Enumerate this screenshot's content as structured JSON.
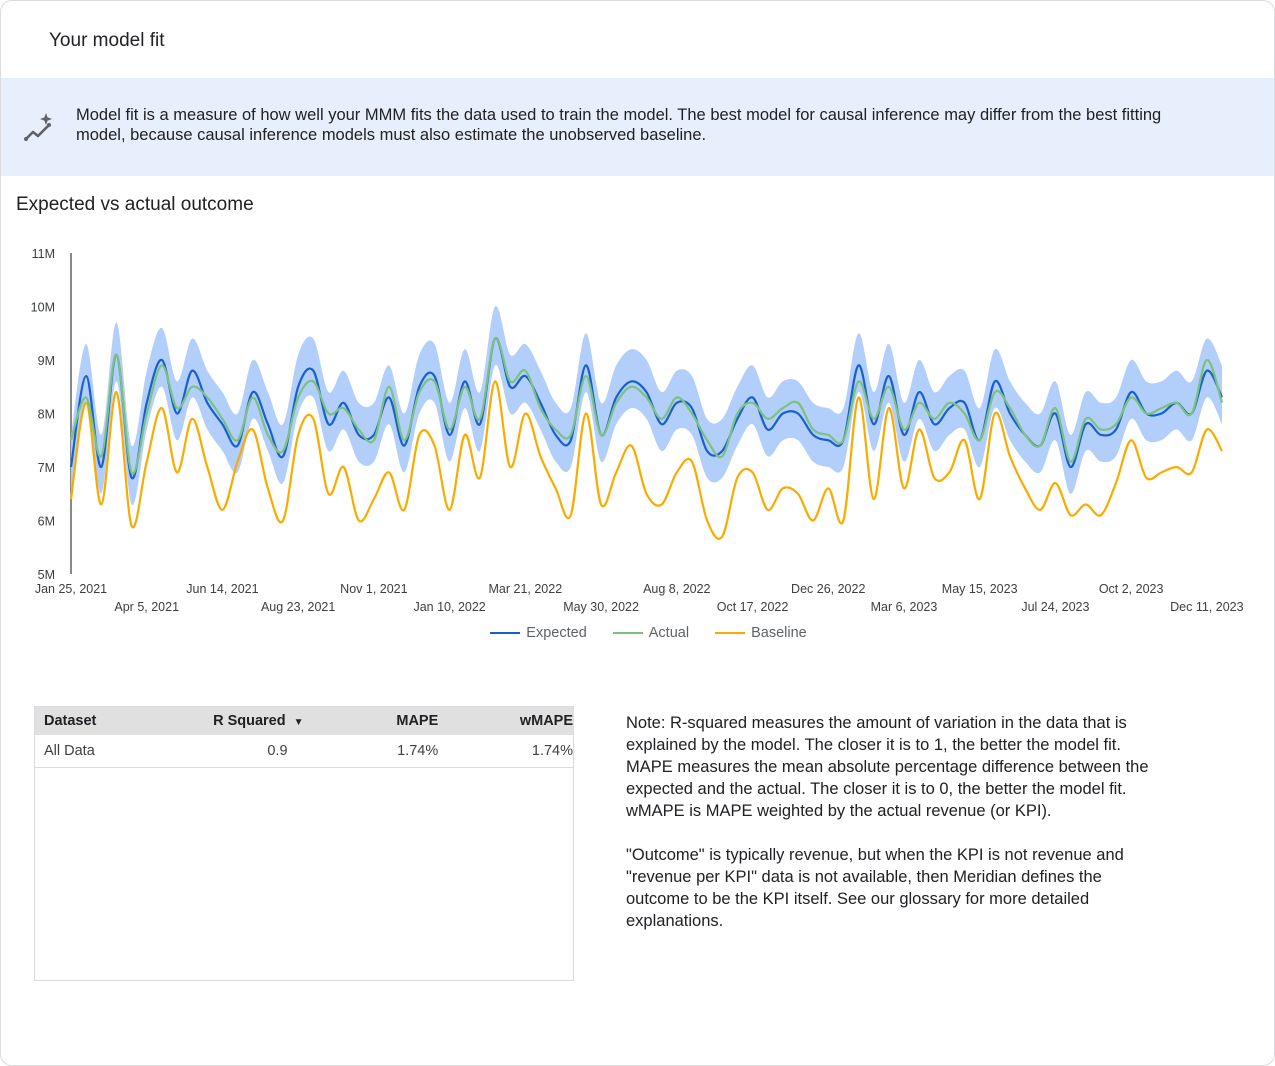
{
  "header": {
    "title": "Your model fit"
  },
  "banner": {
    "icon": "insights-sparkle-icon",
    "text": "Model fit is a measure of how well your MMM fits the data used to train the model. The best model for causal inference may differ from the best fitting model, because causal inference models must also estimate the unobserved baseline."
  },
  "chart_section": {
    "title": "Expected vs actual outcome"
  },
  "chart_data": {
    "type": "line",
    "title": "Expected vs actual outcome",
    "y_ticks": [
      "5M",
      "6M",
      "7M",
      "8M",
      "9M",
      "10M",
      "11M"
    ],
    "ylim": [
      5,
      11
    ],
    "y_unit": "millions",
    "x_ticks": [
      "Jan 25, 2021",
      "Apr 5, 2021",
      "Jun 14, 2021",
      "Aug 23, 2021",
      "Nov 1, 2021",
      "Jan 10, 2022",
      "Mar 21, 2022",
      "May 30, 2022",
      "Aug 8, 2022",
      "Oct 17, 2022",
      "Dec 26, 2022",
      "Mar 6, 2023",
      "May 15, 2023",
      "Jul 24, 2023",
      "Oct 2, 2023",
      "Dec 11, 2023"
    ],
    "grid": false,
    "legend_position": "bottom",
    "x": [
      "2021-01-25",
      "2021-02-08",
      "2021-02-22",
      "2021-03-08",
      "2021-03-22",
      "2021-04-05",
      "2021-04-19",
      "2021-05-03",
      "2021-05-17",
      "2021-05-31",
      "2021-06-14",
      "2021-06-28",
      "2021-07-12",
      "2021-07-26",
      "2021-08-09",
      "2021-08-23",
      "2021-09-06",
      "2021-09-20",
      "2021-10-04",
      "2021-10-18",
      "2021-11-01",
      "2021-11-15",
      "2021-11-29",
      "2021-12-13",
      "2021-12-27",
      "2022-01-10",
      "2022-01-24",
      "2022-02-07",
      "2022-02-21",
      "2022-03-07",
      "2022-03-21",
      "2022-04-04",
      "2022-04-18",
      "2022-05-02",
      "2022-05-16",
      "2022-05-30",
      "2022-06-13",
      "2022-06-27",
      "2022-07-11",
      "2022-07-25",
      "2022-08-08",
      "2022-08-22",
      "2022-09-05",
      "2022-09-19",
      "2022-10-03",
      "2022-10-17",
      "2022-10-31",
      "2022-11-14",
      "2022-11-28",
      "2022-12-12",
      "2022-12-26",
      "2023-01-09",
      "2023-01-23",
      "2023-02-06",
      "2023-02-20",
      "2023-03-06",
      "2023-03-20",
      "2023-04-03",
      "2023-04-17",
      "2023-05-01",
      "2023-05-15",
      "2023-05-29",
      "2023-06-12",
      "2023-06-26",
      "2023-07-10",
      "2023-07-24",
      "2023-08-07",
      "2023-08-21",
      "2023-09-04",
      "2023-09-18",
      "2023-10-02",
      "2023-10-16",
      "2023-10-30",
      "2023-11-13",
      "2023-11-27",
      "2023-12-11",
      "2023-12-25"
    ],
    "series": [
      {
        "name": "Expected",
        "color": "#1a5fd0",
        "values": [
          7.0,
          8.7,
          7.0,
          9.1,
          6.8,
          8.2,
          9.0,
          8.0,
          8.8,
          8.2,
          7.8,
          7.4,
          8.4,
          7.8,
          7.2,
          8.5,
          8.8,
          7.8,
          8.2,
          7.6,
          7.6,
          8.3,
          7.4,
          8.5,
          8.7,
          7.6,
          8.6,
          7.8,
          9.4,
          8.5,
          8.7,
          8.2,
          7.6,
          7.5,
          8.9,
          7.6,
          8.3,
          8.6,
          8.4,
          7.8,
          8.2,
          8.1,
          7.3,
          7.3,
          7.9,
          8.3,
          7.7,
          8.0,
          8.0,
          7.6,
          7.5,
          7.5,
          8.9,
          7.8,
          8.7,
          7.6,
          8.4,
          7.8,
          8.1,
          8.2,
          7.5,
          8.6,
          8.0,
          7.6,
          7.4,
          8.0,
          7.0,
          7.8,
          7.6,
          7.7,
          8.4,
          8.0,
          8.0,
          8.2,
          8.0,
          8.8,
          8.3
        ]
      },
      {
        "name": "Actual",
        "color": "#7cc27f",
        "values": [
          7.5,
          8.3,
          7.2,
          9.1,
          6.9,
          8.0,
          8.9,
          8.1,
          8.5,
          8.3,
          7.9,
          7.5,
          8.3,
          7.6,
          7.3,
          8.3,
          8.6,
          8.0,
          8.1,
          7.7,
          7.5,
          8.5,
          7.5,
          8.4,
          8.6,
          7.7,
          8.5,
          7.9,
          9.4,
          8.6,
          8.8,
          8.1,
          7.7,
          7.6,
          8.7,
          7.6,
          8.2,
          8.5,
          8.3,
          7.9,
          8.3,
          8.0,
          7.5,
          7.2,
          8.0,
          8.2,
          7.9,
          8.1,
          8.2,
          7.7,
          7.6,
          7.5,
          8.6,
          7.9,
          8.5,
          7.7,
          8.2,
          7.9,
          8.2,
          8.0,
          7.5,
          8.4,
          8.1,
          7.6,
          7.4,
          8.1,
          7.1,
          7.9,
          7.7,
          7.8,
          8.3,
          8.0,
          8.1,
          8.2,
          8.0,
          9.0,
          8.2
        ]
      },
      {
        "name": "Baseline",
        "color": "#f9ab00",
        "values": [
          6.4,
          8.2,
          6.3,
          8.4,
          5.9,
          7.1,
          8.1,
          6.9,
          7.9,
          7.0,
          6.2,
          7.1,
          7.7,
          6.6,
          6.0,
          7.6,
          7.9,
          6.5,
          7.0,
          6.0,
          6.4,
          6.9,
          6.2,
          7.6,
          7.4,
          6.2,
          7.6,
          6.8,
          8.6,
          7.0,
          8.0,
          7.2,
          6.6,
          6.1,
          8.0,
          6.3,
          6.9,
          7.4,
          6.5,
          6.3,
          6.9,
          7.1,
          6.0,
          5.7,
          6.8,
          6.9,
          6.2,
          6.6,
          6.5,
          6.0,
          6.6,
          6.0,
          8.3,
          6.4,
          8.1,
          6.6,
          7.7,
          6.8,
          6.9,
          7.5,
          6.4,
          8.0,
          7.2,
          6.6,
          6.2,
          6.7,
          6.1,
          6.3,
          6.1,
          6.7,
          7.5,
          6.8,
          6.9,
          7.0,
          6.9,
          7.7,
          7.3
        ]
      }
    ],
    "expected_band": {
      "color": "#aecbfa",
      "upper": [
        7.6,
        9.3,
        7.6,
        9.7,
        7.4,
        8.8,
        9.6,
        8.6,
        9.4,
        8.8,
        8.4,
        8.0,
        9.0,
        8.4,
        7.8,
        9.1,
        9.4,
        8.4,
        8.8,
        8.2,
        8.2,
        8.9,
        8.0,
        9.1,
        9.3,
        8.2,
        9.2,
        8.4,
        10.0,
        9.1,
        9.3,
        8.8,
        8.2,
        8.1,
        9.5,
        8.2,
        8.9,
        9.2,
        9.0,
        8.4,
        8.8,
        8.7,
        7.9,
        7.9,
        8.5,
        8.9,
        8.3,
        8.6,
        8.6,
        8.2,
        8.1,
        8.1,
        9.5,
        8.4,
        9.3,
        8.2,
        9.0,
        8.4,
        8.7,
        8.8,
        8.1,
        9.2,
        8.6,
        8.2,
        8.0,
        8.6,
        7.6,
        8.4,
        8.2,
        8.3,
        9.0,
        8.6,
        8.6,
        8.8,
        8.6,
        9.4,
        8.9
      ],
      "lower": [
        6.5,
        8.2,
        6.5,
        8.6,
        6.3,
        7.7,
        8.5,
        7.5,
        8.3,
        7.7,
        7.3,
        6.9,
        7.9,
        7.3,
        6.7,
        8.0,
        8.3,
        7.3,
        7.7,
        7.1,
        7.1,
        7.8,
        6.9,
        8.0,
        8.2,
        7.1,
        8.1,
        7.3,
        8.9,
        8.0,
        8.2,
        7.7,
        7.1,
        7.0,
        8.4,
        7.1,
        7.8,
        8.1,
        7.9,
        7.3,
        7.7,
        7.6,
        6.8,
        6.8,
        7.4,
        7.8,
        7.2,
        7.5,
        7.5,
        7.1,
        7.0,
        7.0,
        8.4,
        7.3,
        8.2,
        7.1,
        7.9,
        7.3,
        7.6,
        7.7,
        7.0,
        8.1,
        7.5,
        7.1,
        6.9,
        7.5,
        6.5,
        7.3,
        7.1,
        7.2,
        7.9,
        7.5,
        7.5,
        7.7,
        7.5,
        8.3,
        7.8
      ]
    }
  },
  "legend": [
    {
      "label": "Expected",
      "color": "#1a5fd0"
    },
    {
      "label": "Actual",
      "color": "#7cc27f"
    },
    {
      "label": "Baseline",
      "color": "#f9ab00"
    }
  ],
  "table": {
    "columns": [
      "Dataset",
      "R Squared",
      "MAPE",
      "wMAPE"
    ],
    "sort_icon": "sort-descending-icon",
    "rows": [
      {
        "dataset": "All Data",
        "r_squared": "0.9",
        "mape": "1.74%",
        "wmape": "1.74%"
      }
    ]
  },
  "note": {
    "p1": "Note: R-squared measures the amount of variation in the data that is explained by the model. The closer it is to 1, the better the model fit. MAPE measures the mean absolute percentage difference between the expected and the actual. The closer it is to 0, the better the model fit. wMAPE is MAPE weighted by the actual revenue (or KPI).",
    "p2": "\"Outcome\" is typically revenue, but when the KPI is not revenue and \"revenue per KPI\" data is not available, then Meridian defines the outcome to be the KPI itself. See our glossary for more detailed explanations."
  }
}
